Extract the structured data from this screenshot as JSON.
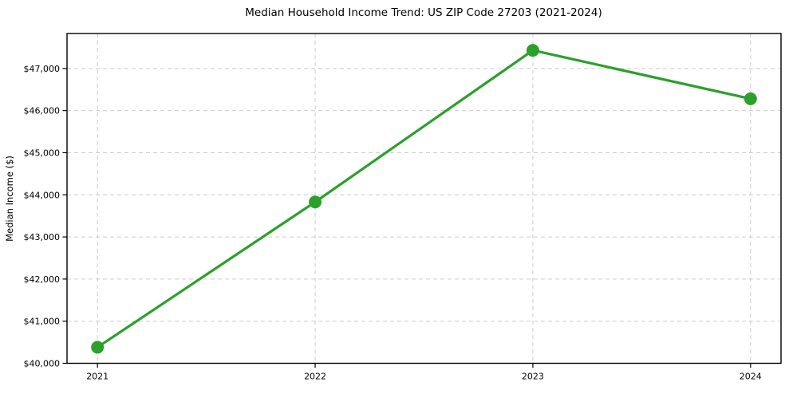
{
  "chart_data": {
    "type": "line",
    "title": "Median Household Income Trend: US ZIP Code 27203 (2021-2024)",
    "xlabel": "",
    "ylabel": "Median Income ($)",
    "x": [
      2021,
      2022,
      2023,
      2024
    ],
    "xtick_labels": [
      "2021",
      "2022",
      "2023",
      "2024"
    ],
    "series": [
      {
        "name": "Median Household Income",
        "values": [
          40380,
          43830,
          47430,
          46280
        ],
        "color": "#2ca02c",
        "marker": "circle"
      }
    ],
    "yticks": [
      40000,
      41000,
      42000,
      43000,
      44000,
      45000,
      46000,
      47000
    ],
    "ytick_labels": [
      "$40,000",
      "$41,000",
      "$42,000",
      "$43,000",
      "$44,000",
      "$45,000",
      "$46,000",
      "$47,000"
    ],
    "ylim": [
      40000,
      47830
    ],
    "xlim": [
      2020.86,
      2024.14
    ],
    "grid": true,
    "grid_style": "dashed",
    "grid_color": "#cccccc",
    "spine_color": "#000000",
    "legend": "none",
    "background_color": "#ffffff"
  }
}
